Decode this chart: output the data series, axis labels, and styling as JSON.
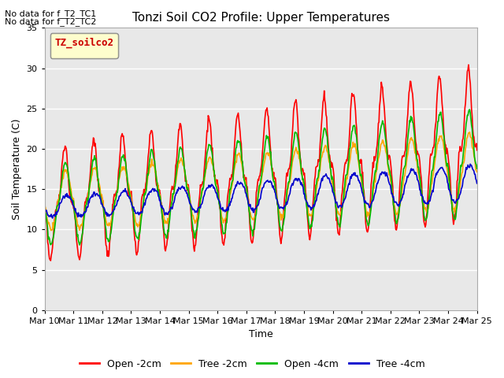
{
  "title": "Tonzi Soil CO2 Profile: Upper Temperatures",
  "ylabel": "Soil Temperature (C)",
  "xlabel": "Time",
  "no_data_text": [
    "No data for f_T2_TC1",
    "No data for f_T2_TC2"
  ],
  "legend_label_text": "TZ_soilco2",
  "ylim": [
    0,
    35
  ],
  "xlim": [
    0,
    15
  ],
  "xtick_labels": [
    "Mar 10",
    "Mar 11",
    "Mar 12",
    "Mar 13",
    "Mar 14",
    "Mar 15",
    "Mar 16",
    "Mar 17",
    "Mar 18",
    "Mar 19",
    "Mar 20",
    "Mar 21",
    "Mar 22",
    "Mar 23",
    "Mar 24",
    "Mar 25"
  ],
  "series_colors": {
    "open_2cm": "#ff0000",
    "tree_2cm": "#ffa500",
    "open_4cm": "#00bb00",
    "tree_4cm": "#0000cc"
  },
  "series_labels": {
    "open_2cm": "Open -2cm",
    "tree_2cm": "Tree -2cm",
    "open_4cm": "Open -4cm",
    "tree_4cm": "Tree -4cm"
  },
  "bg_color": "#e8e8e8",
  "grid_color": "#ffffff",
  "title_fontsize": 11,
  "axis_fontsize": 9,
  "tick_fontsize": 8
}
